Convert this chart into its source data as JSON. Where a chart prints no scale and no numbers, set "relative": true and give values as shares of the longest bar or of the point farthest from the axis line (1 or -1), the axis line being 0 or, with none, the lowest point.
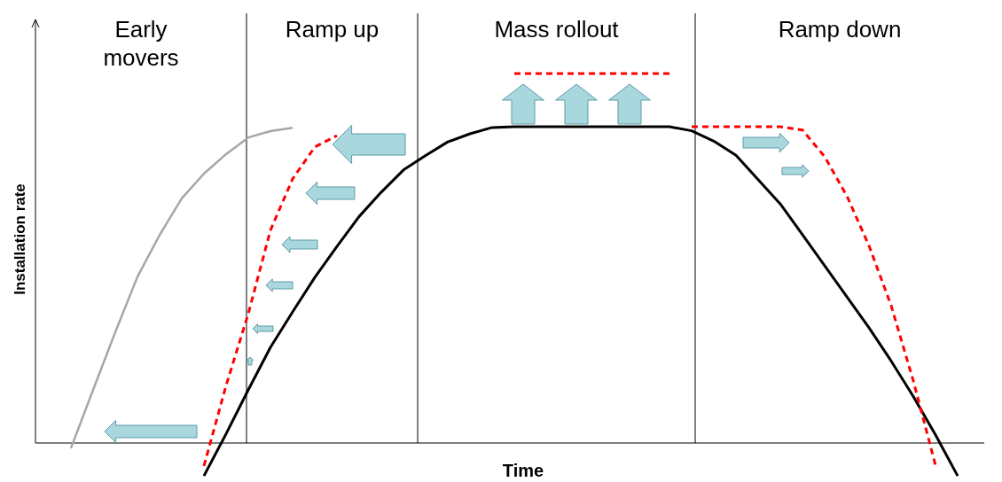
{
  "chart_data": {
    "type": "line",
    "relative": true,
    "xlabel": "Time",
    "ylabel": "Installation rate",
    "tick_labels": false,
    "marker": "none",
    "categories": [
      null,
      null,
      null,
      null,
      null,
      null,
      null,
      null,
      null,
      null,
      null,
      null,
      null,
      null,
      null,
      null,
      null,
      null,
      null,
      null,
      null,
      null,
      null,
      null,
      null,
      null,
      null,
      null,
      null,
      null,
      null,
      null,
      null,
      null,
      null,
      null,
      null,
      null,
      null,
      null,
      null,
      null,
      null
    ],
    "annotations": [
      "Early movers",
      "Ramp up",
      "Mass rollout",
      "Ramp down"
    ],
    "series": [
      {
        "color": "#a6a6a6",
        "line_style": "solid",
        "values": [
          null,
          -0.014,
          0.144,
          0.3,
          0.45,
          0.563,
          0.662,
          0.729,
          0.782,
          0.827,
          0.844,
          0.853,
          null,
          null,
          null,
          null,
          null,
          null,
          null,
          null,
          null,
          null,
          null,
          null,
          null,
          null,
          null,
          null,
          null,
          null,
          null,
          null,
          null,
          null,
          null,
          null,
          null,
          null,
          null,
          null,
          null,
          null,
          null
        ]
      },
      {
        "color": "#000000",
        "line_style": "solid",
        "values": [
          null,
          null,
          null,
          null,
          null,
          null,
          null,
          -0.089,
          0.025,
          0.144,
          0.259,
          0.355,
          0.448,
          0.532,
          0.613,
          0.679,
          0.739,
          0.778,
          0.815,
          0.837,
          0.854,
          0.856,
          0.856,
          0.856,
          0.856,
          0.856,
          0.856,
          0.856,
          0.856,
          0.845,
          0.817,
          0.779,
          0.713,
          0.647,
          0.564,
          0.48,
          0.396,
          0.312,
          0.222,
          0.126,
          0.022,
          -0.089,
          null
        ]
      },
      {
        "color": "#ff0000",
        "line_style": "dashed",
        "values": [
          null,
          null,
          null,
          null,
          null,
          null,
          null,
          -0.062,
          0.156,
          0.35,
          0.576,
          0.715,
          0.801,
          0.832,
          null,
          null,
          null,
          null,
          null,
          null,
          null,
          null,
          null,
          null,
          null,
          null,
          null,
          null,
          null,
          null,
          null,
          null,
          null,
          null,
          null,
          null,
          null,
          null,
          null,
          null,
          null,
          null,
          null
        ]
      },
      {
        "color": "#ff0000",
        "line_style": "dashed",
        "values": [
          null,
          null,
          null,
          null,
          null,
          null,
          null,
          null,
          null,
          null,
          null,
          null,
          null,
          null,
          null,
          null,
          null,
          null,
          null,
          null,
          null,
          1.0,
          1.0,
          1.0,
          1.0,
          1.0,
          1.0,
          1.0,
          1.0,
          null,
          null,
          null,
          null,
          null,
          null,
          null,
          null,
          null,
          null,
          null,
          null,
          null,
          null
        ]
      },
      {
        "color": "#ff0000",
        "line_style": "dashed",
        "values": [
          null,
          null,
          null,
          null,
          null,
          null,
          null,
          null,
          null,
          null,
          null,
          null,
          null,
          null,
          null,
          null,
          null,
          null,
          null,
          null,
          null,
          null,
          null,
          null,
          null,
          null,
          null,
          null,
          null,
          0.856,
          0.856,
          0.856,
          0.856,
          0.856,
          0.847,
          0.775,
          0.669,
          0.534,
          0.372,
          0.168,
          -0.06,
          null,
          null
        ]
      }
    ]
  }
}
